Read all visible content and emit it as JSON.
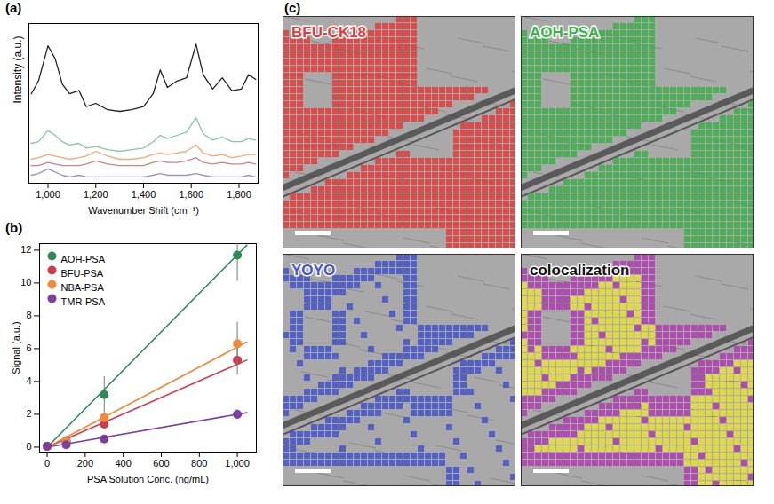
{
  "chart_data": [
    {
      "type": "line",
      "title": "(a)",
      "x_label": "Wavenumber Shift (cm⁻¹)",
      "y_label": "Intensity (a.u.)",
      "x": [
        930,
        960,
        1000,
        1030,
        1060,
        1090,
        1130,
        1160,
        1200,
        1250,
        1300,
        1350,
        1400,
        1440,
        1470,
        1500,
        1540,
        1580,
        1620,
        1650,
        1690,
        1730,
        1770,
        1810,
        1840,
        1870
      ],
      "series": [
        {
          "color": "#222222",
          "values": [
            5.6,
            6.4,
            8.6,
            7.8,
            6.2,
            5.6,
            5.8,
            4.8,
            5.0,
            4.6,
            4.5,
            4.6,
            4.8,
            5.6,
            7.1,
            6.0,
            6.4,
            6.6,
            8.7,
            6.8,
            5.9,
            6.6,
            5.8,
            5.9,
            6.8,
            6.5
          ]
        },
        {
          "color": "#86c7a0",
          "values": [
            2.5,
            2.6,
            3.3,
            3.0,
            2.6,
            2.4,
            2.5,
            2.2,
            2.3,
            2.1,
            2.0,
            2.1,
            2.2,
            2.6,
            3.0,
            2.8,
            3.0,
            3.2,
            4.1,
            3.1,
            2.7,
            2.9,
            2.6,
            2.6,
            2.8,
            2.7
          ]
        },
        {
          "color": "#f2a878",
          "values": [
            1.5,
            1.6,
            1.8,
            1.7,
            1.6,
            1.5,
            1.6,
            1.7,
            2.0,
            1.7,
            1.5,
            1.5,
            1.6,
            1.8,
            1.9,
            1.8,
            1.9,
            2.0,
            2.4,
            1.9,
            1.7,
            1.8,
            1.6,
            1.7,
            1.8,
            1.8
          ]
        },
        {
          "color": "#c98585",
          "values": [
            1.1,
            1.1,
            1.3,
            1.2,
            1.1,
            1.1,
            1.1,
            1.2,
            1.4,
            1.2,
            1.1,
            1.1,
            1.1,
            1.3,
            1.4,
            1.3,
            1.3,
            1.4,
            1.6,
            1.3,
            1.2,
            1.3,
            1.2,
            1.2,
            1.3,
            1.2
          ]
        },
        {
          "color": "#a08fc4",
          "values": [
            0.5,
            0.6,
            0.9,
            0.7,
            0.5,
            0.4,
            0.5,
            0.4,
            0.4,
            0.4,
            0.4,
            0.4,
            0.4,
            0.5,
            0.6,
            0.5,
            0.5,
            0.5,
            0.6,
            0.5,
            0.4,
            0.4,
            0.4,
            0.4,
            0.5,
            0.4
          ]
        }
      ],
      "xlim": [
        920,
        1880
      ],
      "xticks": [
        1000,
        1200,
        1400,
        1600,
        1800
      ],
      "ylim": [
        0,
        10
      ],
      "tick_labels": "x"
    },
    {
      "type": "scatter",
      "title": "(b)",
      "x_label": "PSA Solution Conc. (ng/mL)",
      "y_label": "Signal (a.u.)",
      "x": [
        0,
        100,
        300,
        1000
      ],
      "fit_x": [
        0,
        1050
      ],
      "series": [
        {
          "name": "AOH-PSA",
          "color": "#2e8b57",
          "values": [
            0.05,
            0.4,
            3.2,
            11.7
          ],
          "errors": [
            0,
            0.1,
            1.1,
            1.6
          ],
          "fit_values": [
            0,
            12.3
          ]
        },
        {
          "name": "BFU-PSA",
          "color": "#d13a4a",
          "values": [
            0.05,
            0.3,
            1.4,
            5.3
          ],
          "errors": [
            0,
            0.05,
            0.3,
            0.9
          ],
          "fit_values": [
            0,
            5.3
          ]
        },
        {
          "name": "NBA-PSA",
          "color": "#f08a3a",
          "values": [
            0.05,
            0.35,
            1.8,
            6.3
          ],
          "errors": [
            0,
            0.05,
            0.3,
            1.3
          ],
          "fit_values": [
            0,
            6.4
          ]
        },
        {
          "name": "TMR-PSA",
          "color": "#7b3fa0",
          "values": [
            0.05,
            0.15,
            0.5,
            2.0
          ],
          "errors": [
            0,
            0.02,
            0.1,
            0.3
          ],
          "fit_values": [
            0,
            2.1
          ]
        }
      ],
      "xlim": [
        -40,
        1100
      ],
      "xticks": [
        0,
        200,
        400,
        600,
        800,
        1000
      ],
      "ylim": [
        -0.3,
        12.4
      ],
      "yticks": [
        0,
        2,
        4,
        6,
        8,
        10,
        12
      ],
      "legend": "top-left"
    }
  ],
  "images": {
    "title": "(c)",
    "panels": [
      {
        "label": "BFU-CK18",
        "color": "#e03c3c"
      },
      {
        "label": "AOH-PSA",
        "color": "#3cb04a"
      },
      {
        "label": "YOYO",
        "color": "#4455cc"
      },
      {
        "label": "colocalization",
        "colors": [
          "#e8e03a",
          "#b03cb0"
        ]
      }
    ]
  }
}
